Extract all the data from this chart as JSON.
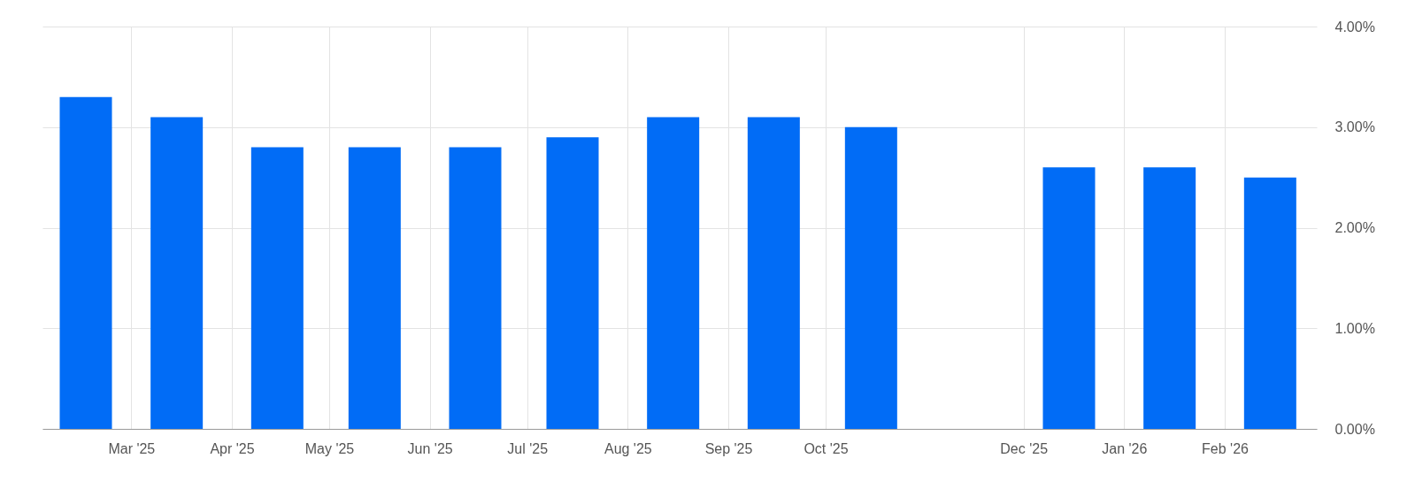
{
  "chart_data": {
    "type": "bar",
    "x": [
      "2025-02-15",
      "2025-03-15",
      "2025-04-15",
      "2025-05-15",
      "2025-06-15",
      "2025-07-15",
      "2025-08-15",
      "2025-09-15",
      "2025-10-15",
      "2025-12-15",
      "2026-01-15",
      "2026-02-15"
    ],
    "values": [
      3.3,
      3.1,
      2.8,
      2.8,
      2.8,
      2.9,
      3.1,
      3.1,
      3.0,
      2.6,
      2.6,
      2.5
    ],
    "color": "#016cf6",
    "xlim": [
      "2025-02-03",
      "2026-02-28"
    ],
    "xticks": [
      {
        "value": "2025-03-01",
        "label": "Mar '25"
      },
      {
        "value": "2025-04-01",
        "label": "Apr '25"
      },
      {
        "value": "2025-05-01",
        "label": "May '25"
      },
      {
        "value": "2025-06-01",
        "label": "Jun '25"
      },
      {
        "value": "2025-07-01",
        "label": "Jul '25"
      },
      {
        "value": "2025-08-01",
        "label": "Aug '25"
      },
      {
        "value": "2025-09-01",
        "label": "Sep '25"
      },
      {
        "value": "2025-10-01",
        "label": "Oct '25"
      },
      {
        "value": "2025-12-01",
        "label": "Dec '25"
      },
      {
        "value": "2026-01-01",
        "label": "Jan '26"
      },
      {
        "value": "2026-02-01",
        "label": "Feb '26"
      }
    ],
    "ylim": [
      0,
      4
    ],
    "yticks": [
      {
        "value": 0,
        "label": "0.00%"
      },
      {
        "value": 1,
        "label": "1.00%"
      },
      {
        "value": 2,
        "label": "2.00%"
      },
      {
        "value": 3,
        "label": "3.00%"
      },
      {
        "value": 4,
        "label": "4.00%"
      }
    ],
    "grid": true
  }
}
